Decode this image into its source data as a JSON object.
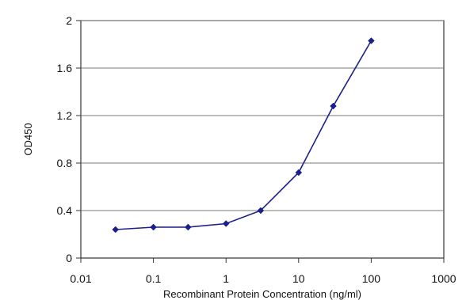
{
  "chart_data": {
    "type": "line",
    "title": "",
    "xlabel": "Recombinant Protein Concentration (ng/ml)",
    "ylabel": "OD450",
    "x_scale": "log",
    "xlim": [
      0.01,
      1000
    ],
    "ylim": [
      0,
      2
    ],
    "x_ticks": [
      "0.01",
      "0.1",
      "1",
      "10",
      "100",
      "1000"
    ],
    "y_ticks": [
      "0",
      "0.4",
      "0.8",
      "1.2",
      "1.6",
      "2"
    ],
    "grid": "horizontal",
    "legend": "none",
    "series": [
      {
        "x": [
          0.03,
          0.1,
          0.3,
          1,
          3,
          10,
          30,
          100
        ],
        "y": [
          0.24,
          0.26,
          0.26,
          0.29,
          0.4,
          0.72,
          1.28,
          1.83
        ],
        "color": "#1a1f8c",
        "marker": "diamond"
      }
    ],
    "colors": {
      "plot_background": "#ffffff",
      "gridline": "#7a7a7a",
      "axis": "#333333"
    }
  }
}
